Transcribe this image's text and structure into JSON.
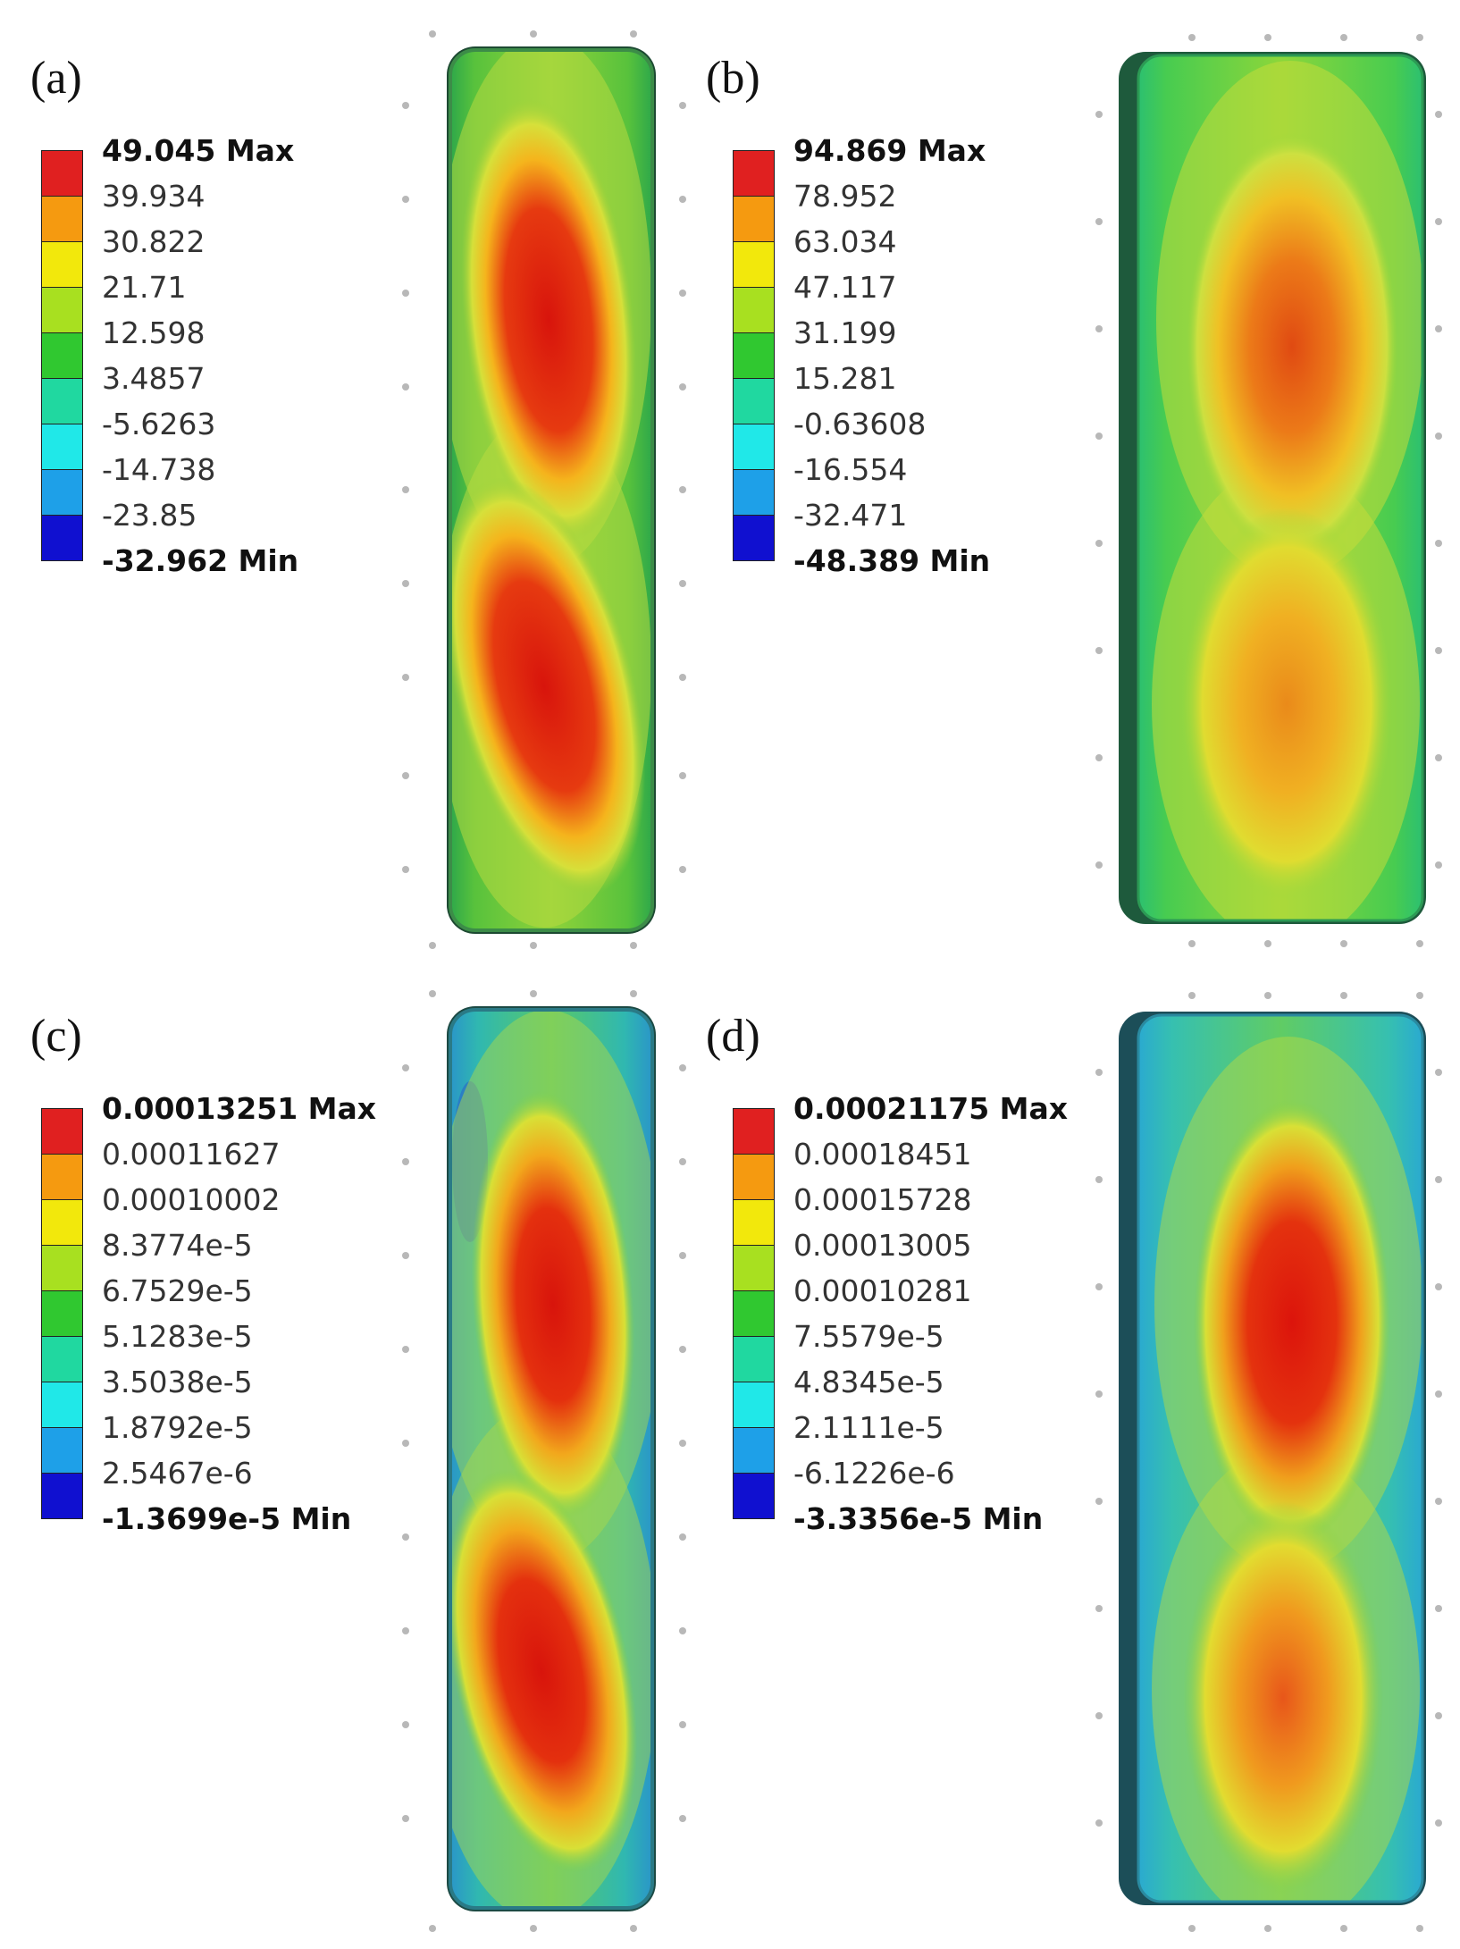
{
  "panels": [
    {
      "label": "(a)",
      "legend": [
        "49.045 Max",
        "39.934",
        "30.822",
        "21.71",
        "12.598",
        "3.4857",
        "-5.6263",
        "-14.738",
        "-23.85",
        "-32.962 Min"
      ]
    },
    {
      "label": "(b)",
      "legend": [
        "94.869 Max",
        "78.952",
        "63.034",
        "47.117",
        "31.199",
        "15.281",
        "-0.63608",
        "-16.554",
        "-32.471",
        "-48.389 Min"
      ]
    },
    {
      "label": "(c)",
      "legend": [
        "0.00013251 Max",
        "0.00011627",
        "0.00010002",
        "8.3774e-5",
        "6.7529e-5",
        "5.1283e-5",
        "3.5038e-5",
        "1.8792e-5",
        "2.5467e-6",
        "-1.3699e-5 Min"
      ]
    },
    {
      "label": "(d)",
      "legend": [
        "0.00021175 Max",
        "0.00018451",
        "0.00015728",
        "0.00013005",
        "0.00010281",
        "7.5579e-5",
        "4.8345e-5",
        "2.1111e-5",
        "-6.1226e-6",
        "-3.3356e-5 Min"
      ]
    }
  ],
  "colors": {
    "scale": [
      "#e02020",
      "#f59a10",
      "#f2e80c",
      "#a8e020",
      "#30c830",
      "#20d8a0",
      "#20e8e8",
      "#1ea0e8",
      "#1010d0"
    ]
  }
}
